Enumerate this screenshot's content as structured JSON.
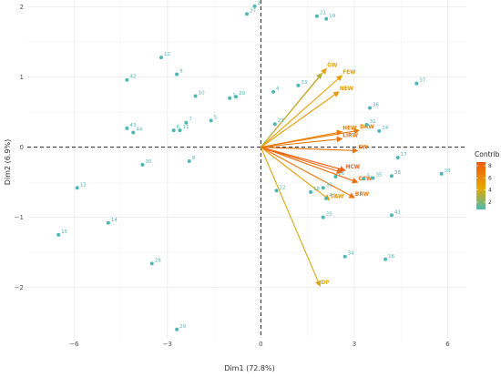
{
  "chart_data": {
    "type": "scatter",
    "subtype": "pca-biplot",
    "title": "",
    "xlabel": "Dim1 (72.8%)",
    "ylabel": "Dim2 (6.9%)",
    "xlim": [
      -7.5,
      6.6
    ],
    "ylim": [
      -2.72,
      2.1
    ],
    "xticks": [
      -6,
      -3,
      0,
      3,
      6
    ],
    "yticks": [
      -2,
      -1,
      0,
      1,
      2
    ],
    "grid": true,
    "legend": {
      "title": "Contrib",
      "position": "right",
      "ticks": [
        2,
        4,
        6,
        8
      ],
      "range": [
        0.8,
        8.6
      ]
    },
    "colors": {
      "low": "#4db8b3",
      "mid": "#e6a800",
      "high": "#f05a0a",
      "point": "#4db8b3",
      "zero_line": "#222222"
    },
    "points": [
      {
        "label": "1",
        "x": -1.0,
        "y": 0.7
      },
      {
        "label": "2",
        "x": -0.2,
        "y": 2.01
      },
      {
        "label": "3",
        "x": 3.3,
        "y": -0.45
      },
      {
        "label": "4",
        "x": 0.4,
        "y": 0.79
      },
      {
        "label": "5",
        "x": -1.6,
        "y": 0.38
      },
      {
        "label": "6",
        "x": -2.8,
        "y": 0.24
      },
      {
        "label": "7",
        "x": -2.4,
        "y": 0.35
      },
      {
        "label": "8",
        "x": -2.3,
        "y": -0.2
      },
      {
        "label": "9",
        "x": -2.7,
        "y": 1.04
      },
      {
        "label": "10",
        "x": -2.1,
        "y": 0.73
      },
      {
        "label": "11",
        "x": -2.6,
        "y": 0.24
      },
      {
        "label": "12",
        "x": -3.2,
        "y": 1.28
      },
      {
        "label": "13",
        "x": -5.9,
        "y": -0.58
      },
      {
        "label": "14",
        "x": -4.9,
        "y": -1.08
      },
      {
        "label": "15",
        "x": -6.5,
        "y": -1.25
      },
      {
        "label": "16",
        "x": 4.0,
        "y": -1.6
      },
      {
        "label": "17",
        "x": 4.4,
        "y": -0.15
      },
      {
        "label": "18",
        "x": 1.6,
        "y": -0.64
      },
      {
        "label": "19",
        "x": 2.1,
        "y": 1.83
      },
      {
        "label": "20",
        "x": -0.8,
        "y": 0.72
      },
      {
        "label": "21",
        "x": 1.8,
        "y": 1.87
      },
      {
        "label": "22",
        "x": 0.5,
        "y": -0.62
      },
      {
        "label": "23",
        "x": 0.45,
        "y": 0.33
      },
      {
        "label": "24",
        "x": 3.8,
        "y": 0.23
      },
      {
        "label": "25",
        "x": 2.0,
        "y": -1.0
      },
      {
        "label": "26",
        "x": 2.4,
        "y": -0.42
      },
      {
        "label": "27",
        "x": -0.45,
        "y": 1.9
      },
      {
        "label": "28",
        "x": -3.5,
        "y": -1.66
      },
      {
        "label": "29",
        "x": -2.7,
        "y": -2.6
      },
      {
        "label": "30",
        "x": -3.8,
        "y": -0.25
      },
      {
        "label": "31",
        "x": 3.4,
        "y": 0.32
      },
      {
        "label": "32",
        "x": 2.0,
        "y": -0.58
      },
      {
        "label": "33",
        "x": 1.2,
        "y": 0.88
      },
      {
        "label": "34",
        "x": 2.7,
        "y": -1.56
      },
      {
        "label": "35",
        "x": 3.6,
        "y": -0.44
      },
      {
        "label": "36",
        "x": 3.5,
        "y": 0.56
      },
      {
        "label": "37",
        "x": 5.0,
        "y": 0.91
      },
      {
        "label": "38",
        "x": 4.2,
        "y": -0.41
      },
      {
        "label": "39",
        "x": 5.8,
        "y": -0.38
      },
      {
        "label": "40",
        "x": 2.1,
        "y": -0.73
      },
      {
        "label": "41",
        "x": 4.2,
        "y": -0.97
      },
      {
        "label": "42",
        "x": -4.3,
        "y": 0.96
      },
      {
        "label": "43",
        "x": -4.3,
        "y": 0.27
      },
      {
        "label": "44",
        "x": -4.1,
        "y": 0.21
      }
    ],
    "variables": [
      {
        "name": "GW",
        "x": 2.1,
        "y": 1.12,
        "contrib": 4.6
      },
      {
        "name": "FEW",
        "x": 2.6,
        "y": 1.02,
        "contrib": 4.7
      },
      {
        "name": "NEW",
        "x": 2.5,
        "y": 0.79,
        "contrib": 5.2
      },
      {
        "name": "",
        "x": 1.95,
        "y": 1.05,
        "contrib": 3.2
      },
      {
        "name": "HEW",
        "x": 2.6,
        "y": 0.22,
        "contrib": 6.8
      },
      {
        "name": "DRW",
        "x": 3.15,
        "y": 0.24,
        "contrib": 6.9
      },
      {
        "name": "LIRW",
        "x": 2.6,
        "y": 0.12,
        "contrib": 7.0
      },
      {
        "name": "SW",
        "x": 3.1,
        "y": -0.05,
        "contrib": 7.2
      },
      {
        "name": "HCW",
        "x": 2.7,
        "y": -0.33,
        "contrib": 8.4
      },
      {
        "name": "CCW",
        "x": 3.1,
        "y": -0.5,
        "contrib": 7.6
      },
      {
        "name": "",
        "x": 2.6,
        "y": -0.36,
        "contrib": 8.1
      },
      {
        "name": "BRW",
        "x": 3.0,
        "y": -0.72,
        "contrib": 7.1
      },
      {
        "name": "CAW",
        "x": 2.2,
        "y": -0.75,
        "contrib": 5.0
      },
      {
        "name": "DP",
        "x": 1.9,
        "y": -1.98,
        "contrib": 4.0
      }
    ]
  }
}
